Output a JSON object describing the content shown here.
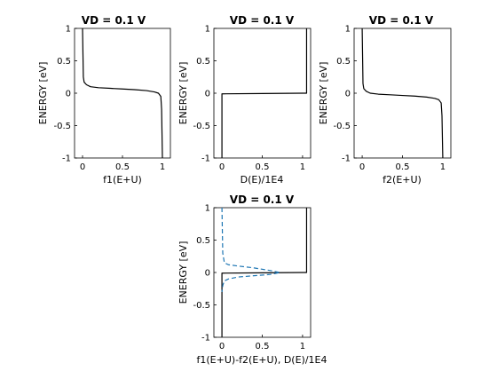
{
  "chart_data": [
    {
      "id": "p1",
      "type": "line",
      "title": "VD = 0.1 V",
      "xlabel": "f1(E+U)",
      "ylabel": "ENERGY  [eV]",
      "xlim": [
        -0.1,
        1.1
      ],
      "ylim": [
        -1,
        1
      ],
      "xticks": [
        0,
        0.5,
        1
      ],
      "xtick_labels": [
        "0",
        "0.5",
        "1"
      ],
      "yticks": [
        -1,
        -0.5,
        0,
        0.5,
        1
      ],
      "ytick_labels": [
        "-1",
        "-0.5",
        "0",
        "0.5",
        "1"
      ],
      "grid": false,
      "series": [
        {
          "style": "solid",
          "color": "#000000",
          "x": [
            0,
            0.01,
            0.02,
            0.05,
            0.1,
            0.2,
            0.35,
            0.5,
            0.65,
            0.8,
            0.9,
            0.95,
            0.98,
            0.99,
            1.0
          ],
          "y": [
            1,
            0.25,
            0.17,
            0.13,
            0.1,
            0.085,
            0.075,
            0.065,
            0.055,
            0.04,
            0.02,
            0.0,
            -0.05,
            -0.25,
            -1
          ]
        }
      ]
    },
    {
      "id": "p2",
      "type": "line",
      "title": "VD = 0.1 V",
      "xlabel": "D(E)/1E4",
      "ylabel": "ENERGY  [eV]",
      "xlim": [
        -0.1,
        1.1
      ],
      "ylim": [
        -1,
        1
      ],
      "xticks": [
        0,
        0.5,
        1
      ],
      "xtick_labels": [
        "0",
        "0.5",
        "1"
      ],
      "yticks": [
        -1,
        -0.5,
        0,
        0.5,
        1
      ],
      "ytick_labels": [
        "-1",
        "-0.5",
        "0",
        "0.5",
        "1"
      ],
      "grid": false,
      "series": [
        {
          "style": "solid",
          "color": "#000000",
          "x": [
            0,
            0,
            0.5,
            1.0,
            1.05,
            1.05
          ],
          "y": [
            -1,
            -0.01,
            -0.005,
            0.0,
            0.0,
            1
          ]
        }
      ]
    },
    {
      "id": "p3",
      "type": "line",
      "title": "VD = 0.1 V",
      "xlabel": "f2(E+U)",
      "ylabel": "ENERGY  [eV]",
      "xlim": [
        -0.1,
        1.1
      ],
      "ylim": [
        -1,
        1
      ],
      "xticks": [
        0,
        0.5,
        1
      ],
      "xtick_labels": [
        "0",
        "0.5",
        "1"
      ],
      "yticks": [
        -1,
        -0.5,
        0,
        0.5,
        1
      ],
      "ytick_labels": [
        "-1",
        "-0.5",
        "0",
        "0.5",
        "1"
      ],
      "grid": false,
      "series": [
        {
          "style": "solid",
          "color": "#000000",
          "x": [
            0,
            0.01,
            0.02,
            0.05,
            0.1,
            0.2,
            0.35,
            0.5,
            0.65,
            0.8,
            0.9,
            0.95,
            0.98,
            0.99,
            1.0
          ],
          "y": [
            1,
            0.15,
            0.07,
            0.03,
            0.0,
            -0.015,
            -0.025,
            -0.035,
            -0.045,
            -0.06,
            -0.08,
            -0.1,
            -0.15,
            -0.35,
            -1
          ]
        }
      ]
    },
    {
      "id": "p4",
      "type": "line",
      "title": "VD = 0.1 V",
      "xlabel": "f1(E+U)-f2(E+U), D(E)/1E4",
      "ylabel": "ENERGY  [eV]",
      "xlim": [
        -0.1,
        1.1
      ],
      "ylim": [
        -1,
        1
      ],
      "xticks": [
        0,
        0.5,
        1
      ],
      "xtick_labels": [
        "0",
        "0.5",
        "1"
      ],
      "yticks": [
        -1,
        -0.5,
        0,
        0.5,
        1
      ],
      "ytick_labels": [
        "-1",
        "-0.5",
        "0",
        "0.5",
        "1"
      ],
      "grid": false,
      "series": [
        {
          "style": "solid",
          "color": "#000000",
          "x": [
            0,
            0,
            0.5,
            1.0,
            1.05,
            1.05
          ],
          "y": [
            -1,
            -0.01,
            -0.005,
            0.0,
            0.0,
            1
          ]
        },
        {
          "style": "dashed",
          "color": "#1f77b4",
          "x": [
            0,
            0.01,
            0.03,
            0.08,
            0.2,
            0.4,
            0.6,
            0.72,
            0.6,
            0.4,
            0.2,
            0.08,
            0.03,
            0.01,
            0
          ],
          "y": [
            1,
            0.3,
            0.15,
            0.12,
            0.1,
            0.07,
            0.03,
            0.0,
            -0.03,
            -0.05,
            -0.07,
            -0.1,
            -0.13,
            -0.2,
            -0.3
          ]
        }
      ]
    }
  ]
}
